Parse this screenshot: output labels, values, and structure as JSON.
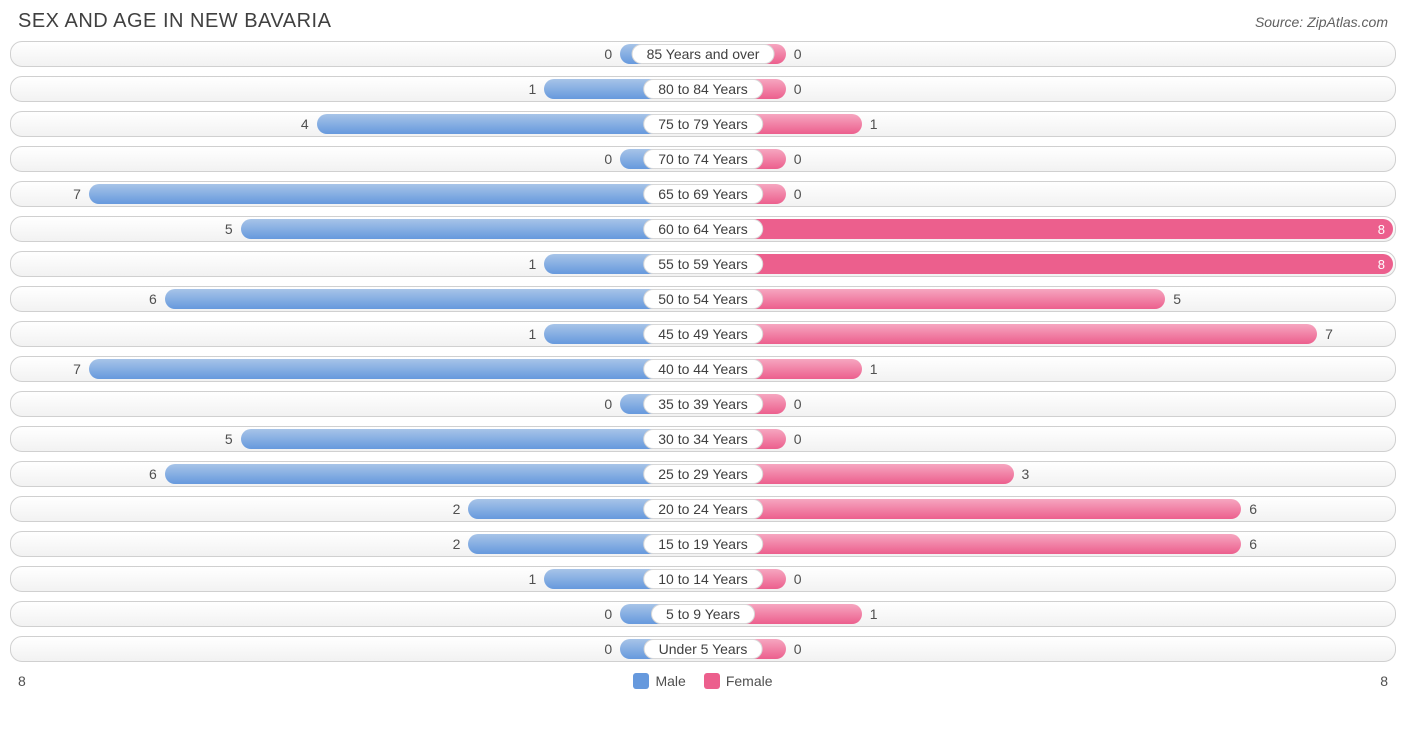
{
  "title": "SEX AND AGE IN NEW BAVARIA",
  "source": "Source: ZipAtlas.com",
  "chart": {
    "type": "population-pyramid",
    "max_male": 8,
    "max_female": 8,
    "min_bar_pct": 12,
    "colors": {
      "male_fill": "#6699dd",
      "male_light": "#a7c4e8",
      "female_fill": "#ec5f8d",
      "female_light": "#f6a6c0",
      "row_border": "#d0d0d0",
      "text": "#505050",
      "bg": "#ffffff"
    },
    "rows": [
      {
        "label": "85 Years and over",
        "male": 0,
        "female": 0
      },
      {
        "label": "80 to 84 Years",
        "male": 1,
        "female": 0
      },
      {
        "label": "75 to 79 Years",
        "male": 4,
        "female": 1
      },
      {
        "label": "70 to 74 Years",
        "male": 0,
        "female": 0
      },
      {
        "label": "65 to 69 Years",
        "male": 7,
        "female": 0
      },
      {
        "label": "60 to 64 Years",
        "male": 5,
        "female": 8
      },
      {
        "label": "55 to 59 Years",
        "male": 1,
        "female": 8
      },
      {
        "label": "50 to 54 Years",
        "male": 6,
        "female": 5
      },
      {
        "label": "45 to 49 Years",
        "male": 1,
        "female": 7
      },
      {
        "label": "40 to 44 Years",
        "male": 7,
        "female": 1
      },
      {
        "label": "35 to 39 Years",
        "male": 0,
        "female": 0
      },
      {
        "label": "30 to 34 Years",
        "male": 5,
        "female": 0
      },
      {
        "label": "25 to 29 Years",
        "male": 6,
        "female": 3
      },
      {
        "label": "20 to 24 Years",
        "male": 2,
        "female": 6
      },
      {
        "label": "15 to 19 Years",
        "male": 2,
        "female": 6
      },
      {
        "label": "10 to 14 Years",
        "male": 1,
        "female": 0
      },
      {
        "label": "5 to 9 Years",
        "male": 0,
        "female": 1
      },
      {
        "label": "Under 5 Years",
        "male": 0,
        "female": 0
      }
    ],
    "legend": {
      "male": "Male",
      "female": "Female"
    },
    "axis_left": "8",
    "axis_right": "8"
  }
}
